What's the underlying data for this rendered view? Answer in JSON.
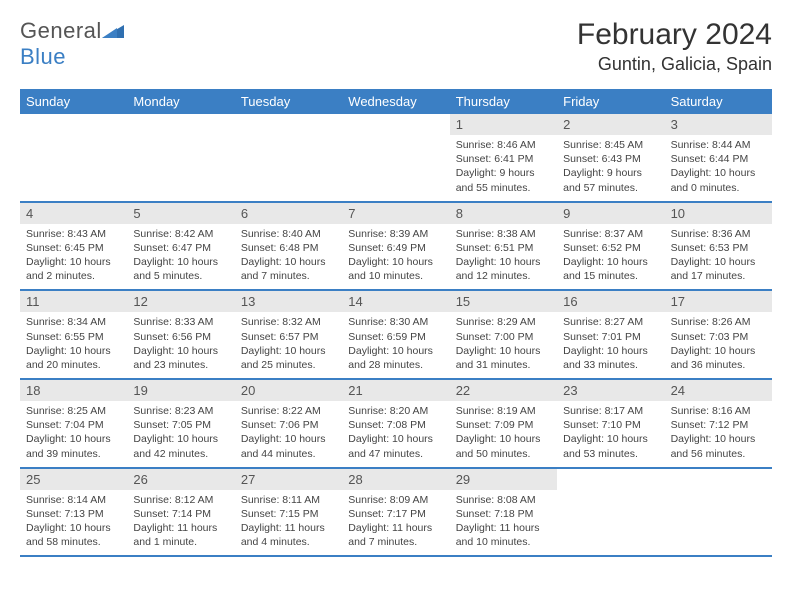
{
  "logo": {
    "text1": "General",
    "text2": "Blue"
  },
  "title": "February 2024",
  "location": "Guntin, Galicia, Spain",
  "weekdays": [
    "Sunday",
    "Monday",
    "Tuesday",
    "Wednesday",
    "Thursday",
    "Friday",
    "Saturday"
  ],
  "colors": {
    "header_bar": "#3b7fc4",
    "day_number_bg": "#e8e8e8",
    "text": "#333333"
  },
  "weeks": [
    [
      null,
      null,
      null,
      null,
      {
        "n": "1",
        "sr": "Sunrise: 8:46 AM",
        "ss": "Sunset: 6:41 PM",
        "d1": "Daylight: 9 hours",
        "d2": "and 55 minutes."
      },
      {
        "n": "2",
        "sr": "Sunrise: 8:45 AM",
        "ss": "Sunset: 6:43 PM",
        "d1": "Daylight: 9 hours",
        "d2": "and 57 minutes."
      },
      {
        "n": "3",
        "sr": "Sunrise: 8:44 AM",
        "ss": "Sunset: 6:44 PM",
        "d1": "Daylight: 10 hours",
        "d2": "and 0 minutes."
      }
    ],
    [
      {
        "n": "4",
        "sr": "Sunrise: 8:43 AM",
        "ss": "Sunset: 6:45 PM",
        "d1": "Daylight: 10 hours",
        "d2": "and 2 minutes."
      },
      {
        "n": "5",
        "sr": "Sunrise: 8:42 AM",
        "ss": "Sunset: 6:47 PM",
        "d1": "Daylight: 10 hours",
        "d2": "and 5 minutes."
      },
      {
        "n": "6",
        "sr": "Sunrise: 8:40 AM",
        "ss": "Sunset: 6:48 PM",
        "d1": "Daylight: 10 hours",
        "d2": "and 7 minutes."
      },
      {
        "n": "7",
        "sr": "Sunrise: 8:39 AM",
        "ss": "Sunset: 6:49 PM",
        "d1": "Daylight: 10 hours",
        "d2": "and 10 minutes."
      },
      {
        "n": "8",
        "sr": "Sunrise: 8:38 AM",
        "ss": "Sunset: 6:51 PM",
        "d1": "Daylight: 10 hours",
        "d2": "and 12 minutes."
      },
      {
        "n": "9",
        "sr": "Sunrise: 8:37 AM",
        "ss": "Sunset: 6:52 PM",
        "d1": "Daylight: 10 hours",
        "d2": "and 15 minutes."
      },
      {
        "n": "10",
        "sr": "Sunrise: 8:36 AM",
        "ss": "Sunset: 6:53 PM",
        "d1": "Daylight: 10 hours",
        "d2": "and 17 minutes."
      }
    ],
    [
      {
        "n": "11",
        "sr": "Sunrise: 8:34 AM",
        "ss": "Sunset: 6:55 PM",
        "d1": "Daylight: 10 hours",
        "d2": "and 20 minutes."
      },
      {
        "n": "12",
        "sr": "Sunrise: 8:33 AM",
        "ss": "Sunset: 6:56 PM",
        "d1": "Daylight: 10 hours",
        "d2": "and 23 minutes."
      },
      {
        "n": "13",
        "sr": "Sunrise: 8:32 AM",
        "ss": "Sunset: 6:57 PM",
        "d1": "Daylight: 10 hours",
        "d2": "and 25 minutes."
      },
      {
        "n": "14",
        "sr": "Sunrise: 8:30 AM",
        "ss": "Sunset: 6:59 PM",
        "d1": "Daylight: 10 hours",
        "d2": "and 28 minutes."
      },
      {
        "n": "15",
        "sr": "Sunrise: 8:29 AM",
        "ss": "Sunset: 7:00 PM",
        "d1": "Daylight: 10 hours",
        "d2": "and 31 minutes."
      },
      {
        "n": "16",
        "sr": "Sunrise: 8:27 AM",
        "ss": "Sunset: 7:01 PM",
        "d1": "Daylight: 10 hours",
        "d2": "and 33 minutes."
      },
      {
        "n": "17",
        "sr": "Sunrise: 8:26 AM",
        "ss": "Sunset: 7:03 PM",
        "d1": "Daylight: 10 hours",
        "d2": "and 36 minutes."
      }
    ],
    [
      {
        "n": "18",
        "sr": "Sunrise: 8:25 AM",
        "ss": "Sunset: 7:04 PM",
        "d1": "Daylight: 10 hours",
        "d2": "and 39 minutes."
      },
      {
        "n": "19",
        "sr": "Sunrise: 8:23 AM",
        "ss": "Sunset: 7:05 PM",
        "d1": "Daylight: 10 hours",
        "d2": "and 42 minutes."
      },
      {
        "n": "20",
        "sr": "Sunrise: 8:22 AM",
        "ss": "Sunset: 7:06 PM",
        "d1": "Daylight: 10 hours",
        "d2": "and 44 minutes."
      },
      {
        "n": "21",
        "sr": "Sunrise: 8:20 AM",
        "ss": "Sunset: 7:08 PM",
        "d1": "Daylight: 10 hours",
        "d2": "and 47 minutes."
      },
      {
        "n": "22",
        "sr": "Sunrise: 8:19 AM",
        "ss": "Sunset: 7:09 PM",
        "d1": "Daylight: 10 hours",
        "d2": "and 50 minutes."
      },
      {
        "n": "23",
        "sr": "Sunrise: 8:17 AM",
        "ss": "Sunset: 7:10 PM",
        "d1": "Daylight: 10 hours",
        "d2": "and 53 minutes."
      },
      {
        "n": "24",
        "sr": "Sunrise: 8:16 AM",
        "ss": "Sunset: 7:12 PM",
        "d1": "Daylight: 10 hours",
        "d2": "and 56 minutes."
      }
    ],
    [
      {
        "n": "25",
        "sr": "Sunrise: 8:14 AM",
        "ss": "Sunset: 7:13 PM",
        "d1": "Daylight: 10 hours",
        "d2": "and 58 minutes."
      },
      {
        "n": "26",
        "sr": "Sunrise: 8:12 AM",
        "ss": "Sunset: 7:14 PM",
        "d1": "Daylight: 11 hours",
        "d2": "and 1 minute."
      },
      {
        "n": "27",
        "sr": "Sunrise: 8:11 AM",
        "ss": "Sunset: 7:15 PM",
        "d1": "Daylight: 11 hours",
        "d2": "and 4 minutes."
      },
      {
        "n": "28",
        "sr": "Sunrise: 8:09 AM",
        "ss": "Sunset: 7:17 PM",
        "d1": "Daylight: 11 hours",
        "d2": "and 7 minutes."
      },
      {
        "n": "29",
        "sr": "Sunrise: 8:08 AM",
        "ss": "Sunset: 7:18 PM",
        "d1": "Daylight: 11 hours",
        "d2": "and 10 minutes."
      },
      null,
      null
    ]
  ]
}
